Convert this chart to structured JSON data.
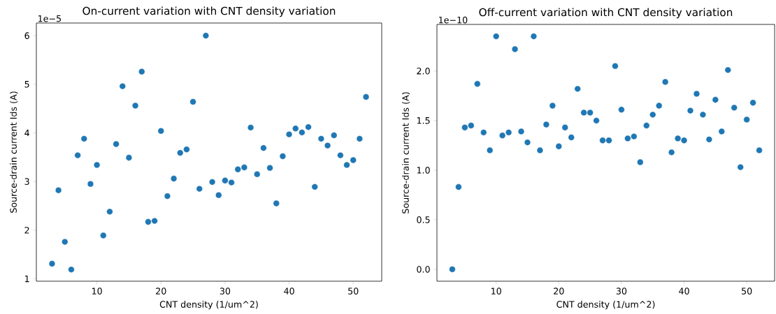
{
  "chart_data": [
    {
      "type": "scatter",
      "title": "On-current variation with CNT density variation",
      "xlabel": "CNT density (1/um^2)",
      "ylabel": "Source-drain current Ids (A)",
      "annotations": [
        "1e−5"
      ],
      "marker": "circle",
      "x": [
        3,
        4,
        5,
        6,
        7,
        8,
        9,
        10,
        11,
        12,
        13,
        14,
        15,
        16,
        17,
        18,
        19,
        20,
        21,
        22,
        23,
        24,
        25,
        26,
        27,
        28,
        29,
        30,
        31,
        32,
        33,
        34,
        35,
        36,
        37,
        38,
        39,
        40,
        41,
        42,
        43,
        44,
        45,
        46,
        47,
        48,
        49,
        50,
        51,
        52
      ],
      "series": [
        {
          "color": "#1f77b4",
          "values": [
            1.31,
            2.82,
            1.76,
            1.19,
            3.54,
            3.88,
            2.95,
            3.34,
            1.89,
            2.38,
            3.77,
            4.96,
            3.49,
            4.56,
            5.26,
            2.17,
            2.19,
            4.04,
            2.7,
            3.06,
            3.59,
            3.66,
            4.64,
            2.85,
            6.0,
            2.99,
            2.72,
            3.02,
            2.98,
            3.25,
            3.29,
            4.11,
            3.15,
            3.69,
            3.28,
            2.55,
            3.52,
            3.97,
            4.09,
            4.01,
            4.12,
            2.89,
            3.88,
            3.74,
            3.95,
            3.54,
            3.34,
            3.44,
            3.88,
            4.74
          ]
        }
      ],
      "xlim": [
        0.55,
        54.45
      ],
      "xticks": [
        10,
        20,
        30,
        40,
        50
      ],
      "ylim": [
        0.95,
        6.26
      ],
      "yticks": [
        1,
        2,
        3,
        4,
        5,
        6
      ]
    },
    {
      "type": "scatter",
      "title": "Off-current variation with CNT density variation",
      "xlabel": "CNT density (1/um^2)",
      "ylabel": "Source-drain current Ids (A)",
      "annotations": [
        "1e−10"
      ],
      "marker": "circle",
      "x": [
        3,
        4,
        5,
        6,
        7,
        8,
        9,
        10,
        11,
        12,
        13,
        14,
        15,
        16,
        17,
        18,
        19,
        20,
        21,
        22,
        23,
        24,
        25,
        26,
        27,
        28,
        29,
        30,
        31,
        32,
        33,
        34,
        35,
        36,
        37,
        38,
        39,
        40,
        41,
        42,
        43,
        44,
        45,
        46,
        47,
        48,
        49,
        50,
        51,
        52
      ],
      "series": [
        {
          "color": "#1f77b4",
          "values": [
            0,
            0.83,
            1.43,
            1.45,
            1.87,
            1.38,
            1.2,
            2.35,
            1.35,
            1.38,
            2.22,
            1.39,
            1.28,
            2.35,
            1.2,
            1.46,
            1.65,
            1.24,
            1.43,
            1.33,
            1.82,
            1.58,
            1.58,
            1.5,
            1.3,
            1.3,
            2.05,
            1.61,
            1.32,
            1.34,
            1.08,
            1.45,
            1.56,
            1.65,
            1.89,
            1.18,
            1.32,
            1.3,
            1.6,
            1.77,
            1.56,
            1.31,
            1.71,
            1.39,
            2.01,
            1.63,
            1.03,
            1.51,
            1.68,
            1.2
          ]
        }
      ],
      "xlim": [
        0.55,
        54.45
      ],
      "xticks": [
        10,
        20,
        30,
        40,
        50
      ],
      "ylim": [
        -0.12,
        2.47
      ],
      "yticks": [
        {
          "value": 0,
          "label": "0.0"
        },
        {
          "value": 0.5,
          "label": "0.5"
        },
        {
          "value": 1,
          "label": "1.0"
        },
        {
          "value": 1.5,
          "label": "1.5"
        },
        {
          "value": 2,
          "label": "2.0"
        }
      ]
    }
  ]
}
